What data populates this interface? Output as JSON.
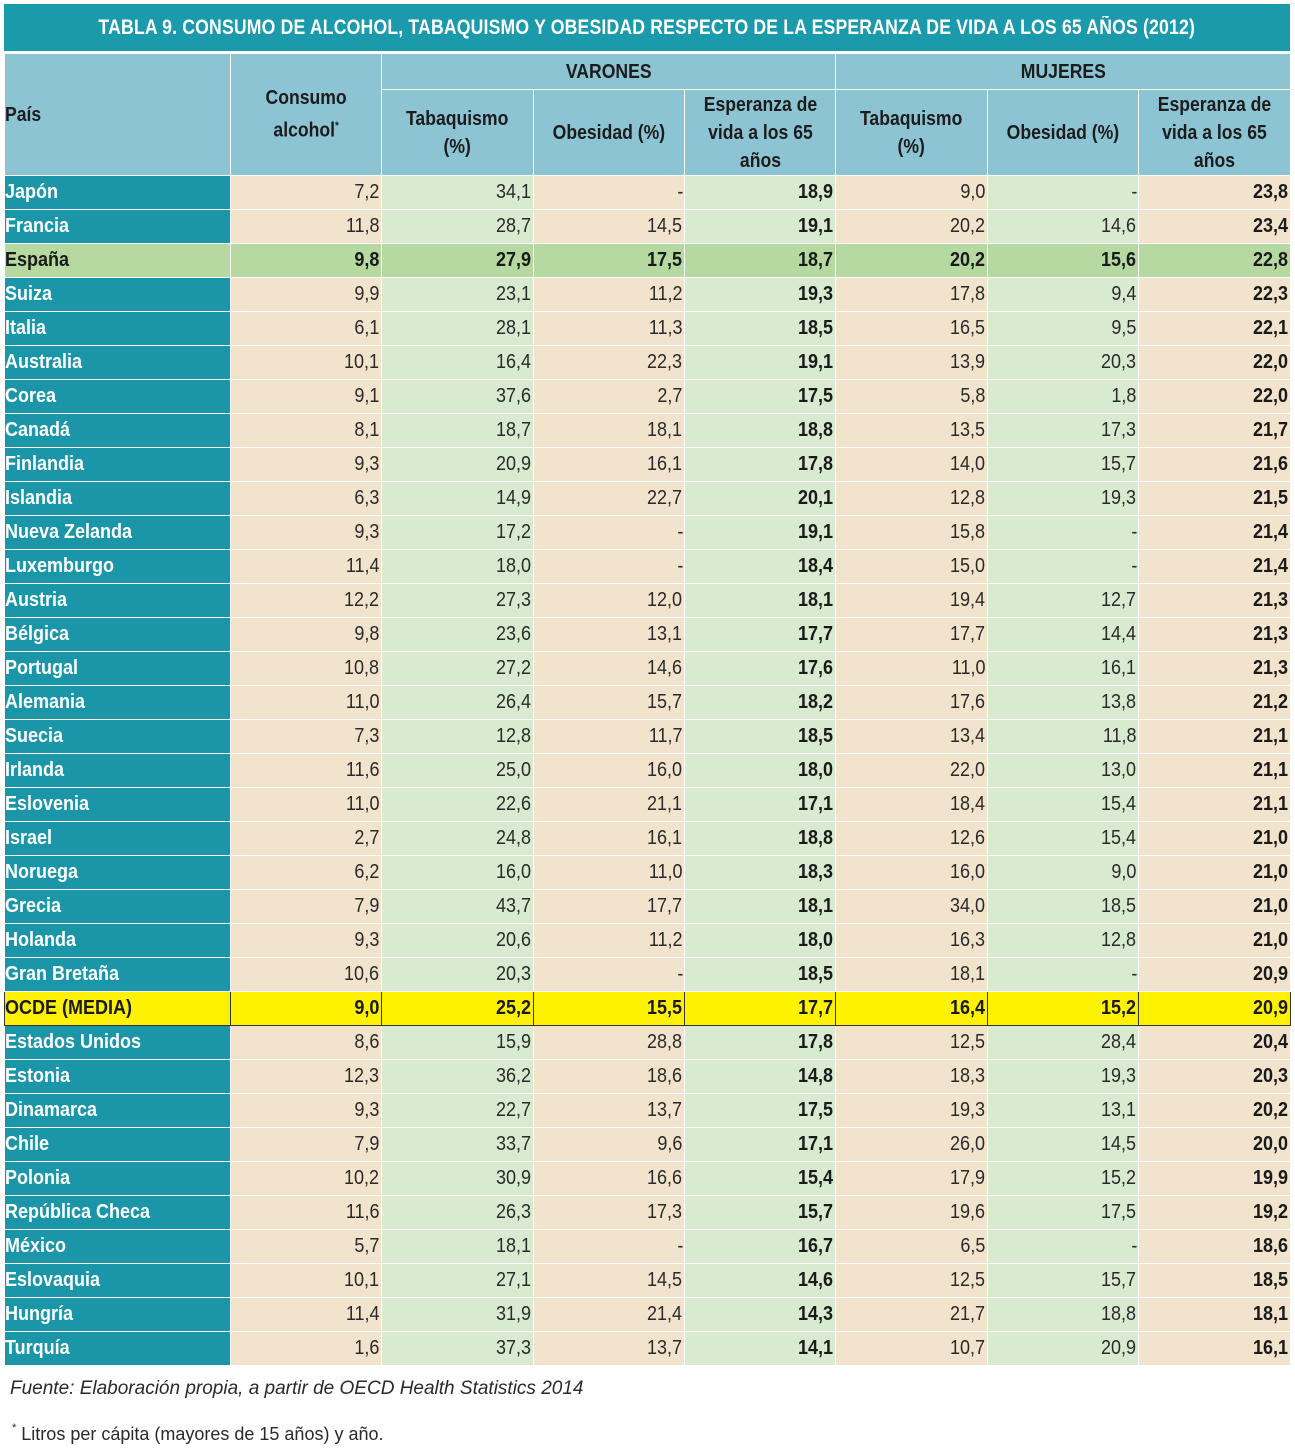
{
  "title": "TABLA 9. CONSUMO DE ALCOHOL, TABAQUISMO Y OBESIDAD RESPECTO DE LA ESPERANZA DE VIDA A LOS 65 AÑOS (2012)",
  "headers": {
    "pais": "País",
    "consumo_line1": "Consumo",
    "consumo_line2": "alcohol",
    "consumo_mark": "*",
    "varones": "VARONES",
    "mujeres": "MUJERES",
    "tabaquismo_line1": "Tabaquismo",
    "tabaquismo_line2": "(%)",
    "obesidad": "Obesidad (%)",
    "esperanza_line1": "Esperanza de",
    "esperanza_line2": "vida a los 65",
    "esperanza_line3": "años"
  },
  "colors": {
    "title_bg": "#1a9aab",
    "header_bg": "#8dc4d4",
    "country_bg": "#1a96a8",
    "beige": "#f2e3cd",
    "green": "#d8ead0",
    "spain_highlight": "#b5d9a0",
    "ocde_highlight": "#fff200"
  },
  "rows": [
    {
      "country": "Japón",
      "alcohol": "7,2",
      "m_tab": "34,1",
      "m_obe": "-",
      "m_ev": "18,9",
      "f_tab": "9,0",
      "f_obe": "-",
      "f_ev": "23,8"
    },
    {
      "country": "Francia",
      "alcohol": "11,8",
      "m_tab": "28,7",
      "m_obe": "14,5",
      "m_ev": "19,1",
      "f_tab": "20,2",
      "f_obe": "14,6",
      "f_ev": "23,4"
    },
    {
      "country": "España",
      "alcohol": "9,8",
      "m_tab": "27,9",
      "m_obe": "17,5",
      "m_ev": "18,7",
      "f_tab": "20,2",
      "f_obe": "15,6",
      "f_ev": "22,8",
      "highlight": "spain"
    },
    {
      "country": "Suiza",
      "alcohol": "9,9",
      "m_tab": "23,1",
      "m_obe": "11,2",
      "m_ev": "19,3",
      "f_tab": "17,8",
      "f_obe": "9,4",
      "f_ev": "22,3"
    },
    {
      "country": "Italia",
      "alcohol": "6,1",
      "m_tab": "28,1",
      "m_obe": "11,3",
      "m_ev": "18,5",
      "f_tab": "16,5",
      "f_obe": "9,5",
      "f_ev": "22,1"
    },
    {
      "country": "Australia",
      "alcohol": "10,1",
      "m_tab": "16,4",
      "m_obe": "22,3",
      "m_ev": "19,1",
      "f_tab": "13,9",
      "f_obe": "20,3",
      "f_ev": "22,0"
    },
    {
      "country": "Corea",
      "alcohol": "9,1",
      "m_tab": "37,6",
      "m_obe": "2,7",
      "m_ev": "17,5",
      "f_tab": "5,8",
      "f_obe": "1,8",
      "f_ev": "22,0"
    },
    {
      "country": "Canadá",
      "alcohol": "8,1",
      "m_tab": "18,7",
      "m_obe": "18,1",
      "m_ev": "18,8",
      "f_tab": "13,5",
      "f_obe": "17,3",
      "f_ev": "21,7"
    },
    {
      "country": "Finlandia",
      "alcohol": "9,3",
      "m_tab": "20,9",
      "m_obe": "16,1",
      "m_ev": "17,8",
      "f_tab": "14,0",
      "f_obe": "15,7",
      "f_ev": "21,6"
    },
    {
      "country": "Islandia",
      "alcohol": "6,3",
      "m_tab": "14,9",
      "m_obe": "22,7",
      "m_ev": "20,1",
      "f_tab": "12,8",
      "f_obe": "19,3",
      "f_ev": "21,5"
    },
    {
      "country": "Nueva Zelanda",
      "alcohol": "9,3",
      "m_tab": "17,2",
      "m_obe": "-",
      "m_ev": "19,1",
      "f_tab": "15,8",
      "f_obe": "-",
      "f_ev": "21,4"
    },
    {
      "country": "Luxemburgo",
      "alcohol": "11,4",
      "m_tab": "18,0",
      "m_obe": "-",
      "m_ev": "18,4",
      "f_tab": "15,0",
      "f_obe": "-",
      "f_ev": "21,4"
    },
    {
      "country": "Austria",
      "alcohol": "12,2",
      "m_tab": "27,3",
      "m_obe": "12,0",
      "m_ev": "18,1",
      "f_tab": "19,4",
      "f_obe": "12,7",
      "f_ev": "21,3"
    },
    {
      "country": "Bélgica",
      "alcohol": "9,8",
      "m_tab": "23,6",
      "m_obe": "13,1",
      "m_ev": "17,7",
      "f_tab": "17,7",
      "f_obe": "14,4",
      "f_ev": "21,3"
    },
    {
      "country": "Portugal",
      "alcohol": "10,8",
      "m_tab": "27,2",
      "m_obe": "14,6",
      "m_ev": "17,6",
      "f_tab": "11,0",
      "f_obe": "16,1",
      "f_ev": "21,3"
    },
    {
      "country": "Alemania",
      "alcohol": "11,0",
      "m_tab": "26,4",
      "m_obe": "15,7",
      "m_ev": "18,2",
      "f_tab": "17,6",
      "f_obe": "13,8",
      "f_ev": "21,2"
    },
    {
      "country": "Suecia",
      "alcohol": "7,3",
      "m_tab": "12,8",
      "m_obe": "11,7",
      "m_ev": "18,5",
      "f_tab": "13,4",
      "f_obe": "11,8",
      "f_ev": "21,1"
    },
    {
      "country": "Irlanda",
      "alcohol": "11,6",
      "m_tab": "25,0",
      "m_obe": "16,0",
      "m_ev": "18,0",
      "f_tab": "22,0",
      "f_obe": "13,0",
      "f_ev": "21,1"
    },
    {
      "country": "Eslovenia",
      "alcohol": "11,0",
      "m_tab": "22,6",
      "m_obe": "21,1",
      "m_ev": "17,1",
      "f_tab": "18,4",
      "f_obe": "15,4",
      "f_ev": "21,1"
    },
    {
      "country": "Israel",
      "alcohol": "2,7",
      "m_tab": "24,8",
      "m_obe": "16,1",
      "m_ev": "18,8",
      "f_tab": "12,6",
      "f_obe": "15,4",
      "f_ev": "21,0"
    },
    {
      "country": "Noruega",
      "alcohol": "6,2",
      "m_tab": "16,0",
      "m_obe": "11,0",
      "m_ev": "18,3",
      "f_tab": "16,0",
      "f_obe": "9,0",
      "f_ev": "21,0"
    },
    {
      "country": "Grecia",
      "alcohol": "7,9",
      "m_tab": "43,7",
      "m_obe": "17,7",
      "m_ev": "18,1",
      "f_tab": "34,0",
      "f_obe": "18,5",
      "f_ev": "21,0"
    },
    {
      "country": "Holanda",
      "alcohol": "9,3",
      "m_tab": "20,6",
      "m_obe": "11,2",
      "m_ev": "18,0",
      "f_tab": "16,3",
      "f_obe": "12,8",
      "f_ev": "21,0"
    },
    {
      "country": "Gran Bretaña",
      "alcohol": "10,6",
      "m_tab": "20,3",
      "m_obe": "-",
      "m_ev": "18,5",
      "f_tab": "18,1",
      "f_obe": "-",
      "f_ev": "20,9"
    },
    {
      "country": "OCDE (MEDIA)",
      "alcohol": "9,0",
      "m_tab": "25,2",
      "m_obe": "15,5",
      "m_ev": "17,7",
      "f_tab": "16,4",
      "f_obe": "15,2",
      "f_ev": "20,9",
      "highlight": "ocde"
    },
    {
      "country": "Estados Unidos",
      "alcohol": "8,6",
      "m_tab": "15,9",
      "m_obe": "28,8",
      "m_ev": "17,8",
      "f_tab": "12,5",
      "f_obe": "28,4",
      "f_ev": "20,4"
    },
    {
      "country": "Estonia",
      "alcohol": "12,3",
      "m_tab": "36,2",
      "m_obe": "18,6",
      "m_ev": "14,8",
      "f_tab": "18,3",
      "f_obe": "19,3",
      "f_ev": "20,3"
    },
    {
      "country": "Dinamarca",
      "alcohol": "9,3",
      "m_tab": "22,7",
      "m_obe": "13,7",
      "m_ev": "17,5",
      "f_tab": "19,3",
      "f_obe": "13,1",
      "f_ev": "20,2"
    },
    {
      "country": "Chile",
      "alcohol": "7,9",
      "m_tab": "33,7",
      "m_obe": "9,6",
      "m_ev": "17,1",
      "f_tab": "26,0",
      "f_obe": "14,5",
      "f_ev": "20,0"
    },
    {
      "country": "Polonia",
      "alcohol": "10,2",
      "m_tab": "30,9",
      "m_obe": "16,6",
      "m_ev": "15,4",
      "f_tab": "17,9",
      "f_obe": "15,2",
      "f_ev": "19,9"
    },
    {
      "country": "República Checa",
      "alcohol": "11,6",
      "m_tab": "26,3",
      "m_obe": "17,3",
      "m_ev": "15,7",
      "f_tab": "19,6",
      "f_obe": "17,5",
      "f_ev": "19,2"
    },
    {
      "country": "México",
      "alcohol": "5,7",
      "m_tab": "18,1",
      "m_obe": "-",
      "m_ev": "16,7",
      "f_tab": "6,5",
      "f_obe": "-",
      "f_ev": "18,6"
    },
    {
      "country": "Eslovaquia",
      "alcohol": "10,1",
      "m_tab": "27,1",
      "m_obe": "14,5",
      "m_ev": "14,6",
      "f_tab": "12,5",
      "f_obe": "15,7",
      "f_ev": "18,5"
    },
    {
      "country": "Hungría",
      "alcohol": "11,4",
      "m_tab": "31,9",
      "m_obe": "21,4",
      "m_ev": "14,3",
      "f_tab": "21,7",
      "f_obe": "18,8",
      "f_ev": "18,1"
    },
    {
      "country": "Turquía",
      "alcohol": "1,6",
      "m_tab": "37,3",
      "m_obe": "13,7",
      "m_ev": "14,1",
      "f_tab": "10,7",
      "f_obe": "20,9",
      "f_ev": "16,1"
    }
  ],
  "source": "Fuente: Elaboración propia, a partir de OECD Health Statistics 2014",
  "footnote_mark": "*",
  "footnote": "Litros per cápita (mayores de 15 años) y año."
}
